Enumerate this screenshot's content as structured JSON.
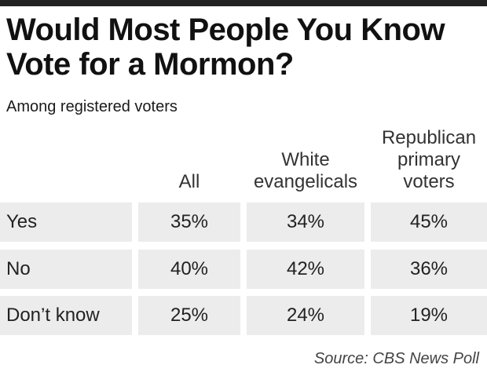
{
  "chart_data": {
    "type": "table",
    "title": "Would Most People You Know Vote for a Mormon?",
    "subtitle": "Among registered voters",
    "columns": [
      "All",
      "White\nevangelicals",
      "Republican\nprimary\nvoters"
    ],
    "rows": [
      {
        "label": "Yes",
        "values": [
          "35%",
          "34%",
          "45%"
        ]
      },
      {
        "label": "No",
        "values": [
          "40%",
          "42%",
          "36%"
        ]
      },
      {
        "label": "Don’t know",
        "values": [
          "25%",
          "24%",
          "19%"
        ]
      }
    ],
    "values_numeric": [
      [
        35,
        34,
        45
      ],
      [
        40,
        42,
        36
      ],
      [
        25,
        24,
        19
      ]
    ],
    "source": "Source: CBS News Poll"
  }
}
